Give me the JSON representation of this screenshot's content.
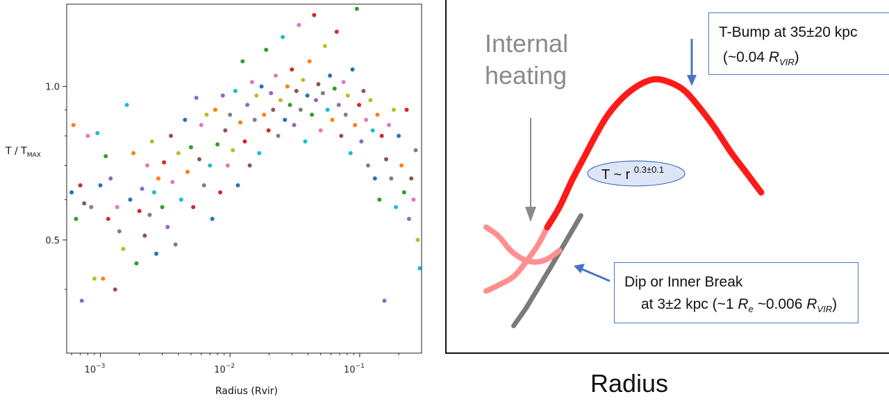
{
  "left_panel": {
    "xlabel": "Radius (Rvir)",
    "ylabel_main": "T / T",
    "ylabel_sub": "MAX",
    "x_ticks": [
      {
        "base": "10",
        "exp": "−3",
        "value": 0.001
      },
      {
        "base": "10",
        "exp": "−2",
        "value": 0.01
      },
      {
        "base": "10",
        "exp": "−1",
        "value": 0.1
      }
    ],
    "y_ticks": [
      {
        "label": "1.0",
        "value": 1.0
      },
      {
        "label": "0.5",
        "value": 0.5
      }
    ]
  },
  "chart_data": [
    {
      "type": "scatter",
      "xlabel": "Radius (Rvir)",
      "ylabel": "T / T_MAX",
      "xscale": "log",
      "yscale": "log",
      "xlim": [
        0.00055,
        0.3
      ],
      "ylim": [
        0.3,
        1.45
      ],
      "x_ticks": [
        0.001,
        0.01,
        0.1
      ],
      "y_ticks": [
        0.5,
        1.0
      ],
      "grid": false,
      "point_colors": [
        "#1f77b4",
        "#ff7f0e",
        "#2ca02c",
        "#d62728",
        "#9467bd",
        "#8c564b",
        "#e377c2",
        "#7f7f7f",
        "#bcbd22",
        "#17becf"
      ],
      "points": [
        [
          0.0006,
          0.62
        ],
        [
          0.00062,
          0.84
        ],
        [
          0.00065,
          0.55
        ],
        [
          0.0007,
          0.64
        ],
        [
          0.00072,
          0.38
        ],
        [
          0.00075,
          0.59
        ],
        [
          0.0008,
          0.8
        ],
        [
          0.00085,
          0.58
        ],
        [
          0.0009,
          0.42
        ],
        [
          0.00095,
          0.81
        ],
        [
          0.001,
          0.64
        ],
        [
          0.00105,
          0.42
        ],
        [
          0.0011,
          0.73
        ],
        [
          0.00115,
          0.55
        ],
        [
          0.0012,
          0.66
        ],
        [
          0.0013,
          0.4
        ],
        [
          0.00135,
          0.58
        ],
        [
          0.0014,
          0.52
        ],
        [
          0.0015,
          0.48
        ],
        [
          0.0016,
          0.92
        ],
        [
          0.0017,
          0.6
        ],
        [
          0.0018,
          0.74
        ],
        [
          0.0019,
          0.45
        ],
        [
          0.002,
          0.57
        ],
        [
          0.0021,
          0.63
        ],
        [
          0.0022,
          0.51
        ],
        [
          0.0023,
          0.7
        ],
        [
          0.0024,
          0.56
        ],
        [
          0.0025,
          0.78
        ],
        [
          0.0026,
          0.62
        ],
        [
          0.0027,
          0.47
        ],
        [
          0.0028,
          0.66
        ],
        [
          0.003,
          0.58
        ],
        [
          0.0031,
          0.71
        ],
        [
          0.0033,
          0.53
        ],
        [
          0.0035,
          0.8
        ],
        [
          0.0036,
          0.65
        ],
        [
          0.0038,
          0.49
        ],
        [
          0.004,
          0.74
        ],
        [
          0.0042,
          0.6
        ],
        [
          0.0045,
          0.86
        ],
        [
          0.0047,
          0.68
        ],
        [
          0.005,
          0.76
        ],
        [
          0.0052,
          0.58
        ],
        [
          0.0055,
          0.95
        ],
        [
          0.0058,
          0.72
        ],
        [
          0.006,
          0.84
        ],
        [
          0.0063,
          0.64
        ],
        [
          0.0066,
          0.88
        ],
        [
          0.007,
          0.7
        ],
        [
          0.0073,
          0.55
        ],
        [
          0.0077,
          0.9
        ],
        [
          0.008,
          0.77
        ],
        [
          0.0084,
          0.62
        ],
        [
          0.0088,
          0.96
        ],
        [
          0.0092,
          0.82
        ],
        [
          0.0096,
          0.7
        ],
        [
          0.01,
          0.88
        ],
        [
          0.0105,
          0.75
        ],
        [
          0.011,
          0.98
        ],
        [
          0.0115,
          0.64
        ],
        [
          0.012,
          0.85
        ],
        [
          0.0125,
          1.12
        ],
        [
          0.013,
          0.78
        ],
        [
          0.0136,
          0.92
        ],
        [
          0.0142,
          0.7
        ],
        [
          0.0148,
          1.02
        ],
        [
          0.0155,
          0.86
        ],
        [
          0.016,
          0.96
        ],
        [
          0.0168,
          0.74
        ],
        [
          0.0175,
          1.0
        ],
        [
          0.0183,
          0.88
        ],
        [
          0.019,
          1.18
        ],
        [
          0.0198,
          0.82
        ],
        [
          0.0207,
          0.97
        ],
        [
          0.0215,
          0.9
        ],
        [
          0.0225,
          1.05
        ],
        [
          0.0235,
          0.8
        ],
        [
          0.0245,
          0.94
        ],
        [
          0.0255,
          1.25
        ],
        [
          0.0265,
          0.86
        ],
        [
          0.0277,
          1.0
        ],
        [
          0.029,
          0.92
        ],
        [
          0.03,
          1.08
        ],
        [
          0.0312,
          0.84
        ],
        [
          0.0325,
          0.98
        ],
        [
          0.034,
          1.32
        ],
        [
          0.035,
          0.9
        ],
        [
          0.0365,
          1.03
        ],
        [
          0.038,
          0.78
        ],
        [
          0.0395,
          0.96
        ],
        [
          0.041,
          1.12
        ],
        [
          0.0428,
          0.88
        ],
        [
          0.0445,
          1.38
        ],
        [
          0.046,
          0.94
        ],
        [
          0.048,
          1.01
        ],
        [
          0.05,
          0.82
        ],
        [
          0.052,
          0.97
        ],
        [
          0.054,
          1.2
        ],
        [
          0.0565,
          0.9
        ],
        [
          0.059,
          1.05
        ],
        [
          0.0615,
          0.86
        ],
        [
          0.064,
          0.99
        ],
        [
          0.0665,
          1.28
        ],
        [
          0.069,
          0.92
        ],
        [
          0.072,
          0.8
        ],
        [
          0.075,
          1.02
        ],
        [
          0.078,
          0.88
        ],
        [
          0.081,
          0.96
        ],
        [
          0.085,
          0.74
        ],
        [
          0.088,
          1.08
        ],
        [
          0.092,
          0.84
        ],
        [
          0.095,
          1.42
        ],
        [
          0.099,
          0.92
        ],
        [
          0.103,
          0.78
        ],
        [
          0.107,
          0.98
        ],
        [
          0.112,
          0.86
        ],
        [
          0.116,
          0.7
        ],
        [
          0.121,
          0.94
        ],
        [
          0.126,
          0.82
        ],
        [
          0.131,
          0.66
        ],
        [
          0.137,
          0.88
        ],
        [
          0.142,
          0.6
        ],
        [
          0.148,
          0.8
        ],
        [
          0.155,
          0.38
        ],
        [
          0.16,
          0.72
        ],
        [
          0.168,
          0.84
        ],
        [
          0.175,
          0.66
        ],
        [
          0.183,
          0.9
        ],
        [
          0.19,
          0.58
        ],
        [
          0.2,
          0.8
        ],
        [
          0.21,
          0.7
        ],
        [
          0.22,
          0.62
        ],
        [
          0.23,
          0.9
        ],
        [
          0.24,
          0.55
        ],
        [
          0.25,
          0.66
        ],
        [
          0.26,
          0.6
        ],
        [
          0.27,
          0.75
        ],
        [
          0.28,
          0.5
        ],
        [
          0.29,
          0.44
        ]
      ]
    },
    {
      "type": "line",
      "xlabel": "Radius",
      "ylabel": "",
      "series": [
        {
          "x": [
            0.0,
            0.04,
            0.09,
            0.13,
            0.17,
            0.2,
            0.24,
            0.28,
            0.32,
            0.36,
            0.4,
            0.45,
            0.5,
            0.55,
            0.6,
            0.65,
            0.7,
            0.75,
            0.8,
            0.85,
            0.9
          ],
          "y": [
            0.14,
            0.16,
            0.19,
            0.24,
            0.3,
            0.36,
            0.43,
            0.52,
            0.6,
            0.68,
            0.75,
            0.81,
            0.85,
            0.87,
            0.86,
            0.83,
            0.77,
            0.7,
            0.62,
            0.55,
            0.48
          ]
        },
        {
          "x": [
            0.0,
            0.04,
            0.08,
            0.12,
            0.16,
            0.2,
            0.24
          ],
          "y": [
            0.36,
            0.33,
            0.28,
            0.25,
            0.24,
            0.25,
            0.28
          ]
        },
        {
          "x": [
            0.09,
            0.13,
            0.17,
            0.21,
            0.26,
            0.31
          ],
          "y": [
            0.02,
            0.08,
            0.15,
            0.22,
            0.31,
            0.4
          ]
        }
      ]
    }
  ],
  "right_panel": {
    "internal_heating_label": "Internal heating",
    "x_axis_label": "Radius",
    "power_law": {
      "prefix": "T ~ r ",
      "exponent": "0.3±0.1"
    },
    "bump_note": {
      "line1": "T-Bump at 35±20 kpc",
      "line2_prefix": "(~0.04 ",
      "R": "R",
      "sub": "VIR",
      "suffix": ")"
    },
    "dip_note": {
      "line1": "Dip or Inner Break",
      "line2_prefix": "at 3±2 kpc (~1 ",
      "Re": "R",
      "Re_sub": "e",
      "mid": " ~0.006 ",
      "R": "R",
      "sub": "VIR",
      "suffix": ")"
    },
    "colors": {
      "main_curve": "#ff1a1a",
      "faint_curve": "#ff8f8f",
      "gray_line": "#7a7a7a",
      "arrow_blue": "#4a74c4",
      "ellipse_fill": "#dde6f6"
    }
  }
}
